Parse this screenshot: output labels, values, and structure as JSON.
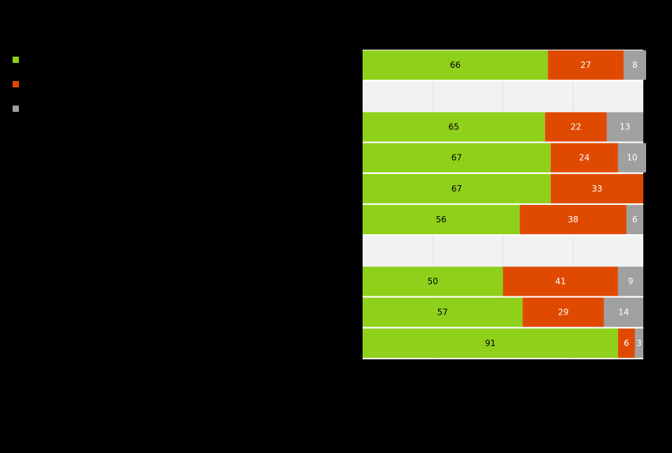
{
  "chart_data": {
    "type": "bar",
    "orientation": "horizontal",
    "stacked": true,
    "xlim": [
      0,
      100
    ],
    "grid": true,
    "legend_position": "top-left",
    "rows": [
      {
        "values": [
          66,
          27,
          8
        ]
      },
      {
        "values": null
      },
      {
        "values": [
          65,
          22,
          13
        ]
      },
      {
        "values": [
          67,
          24,
          10
        ]
      },
      {
        "values": [
          67,
          33,
          0
        ]
      },
      {
        "values": [
          56,
          38,
          6
        ]
      },
      {
        "values": null
      },
      {
        "values": [
          50,
          41,
          9
        ]
      },
      {
        "values": [
          57,
          29,
          14
        ]
      },
      {
        "values": [
          91,
          6,
          3
        ]
      }
    ],
    "series": [
      {
        "color": "#8fd01a",
        "label_color": "#000000"
      },
      {
        "color": "#e04a00",
        "label_color": "#ffffff"
      },
      {
        "color": "#a0a0a0",
        "label_color": "#ffffff"
      }
    ],
    "colors": {
      "background": "#000000",
      "plot_background": "#f2f2f2",
      "gridline": "#e2e2e2",
      "separator": "#ffffff"
    }
  }
}
